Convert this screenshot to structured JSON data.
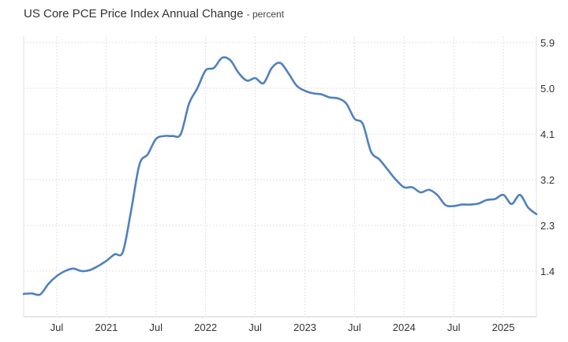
{
  "header": {
    "title": "US Core PCE Price Index Annual Change",
    "subtitle": "- percent"
  },
  "colors": {
    "line": "#4f81bd",
    "grid": "#e0e0e0",
    "text": "#333333"
  },
  "chart_data": {
    "type": "line",
    "title": "US Core PCE Price Index Annual Change",
    "subtitle": "- percent",
    "xlabel": "",
    "ylabel": "",
    "grid": true,
    "yaxis_position": "right",
    "ylim": [
      0.5,
      5.9
    ],
    "y_ticks": [
      1.4,
      2.3,
      3.2,
      4.1,
      5.0,
      5.9
    ],
    "y_tick_labels": [
      "1.4",
      "2.3",
      "3.2",
      "4.1",
      "5.0",
      "5.9"
    ],
    "xlim": [
      "2020-03",
      "2025-05"
    ],
    "x_ticks": [
      "2020-07",
      "2021-01",
      "2021-07",
      "2022-01",
      "2022-07",
      "2023-01",
      "2023-07",
      "2024-01",
      "2024-07",
      "2025-01"
    ],
    "x_tick_labels": [
      "Jul",
      "2021",
      "Jul",
      "2022",
      "Jul",
      "2023",
      "Jul",
      "2024",
      "Jul",
      "2025"
    ],
    "series": [
      {
        "name": "",
        "x": [
          "2020-03",
          "2020-04",
          "2020-05",
          "2020-06",
          "2020-07",
          "2020-08",
          "2020-09",
          "2020-10",
          "2020-11",
          "2020-12",
          "2021-01",
          "2021-02",
          "2021-03",
          "2021-04",
          "2021-05",
          "2021-06",
          "2021-07",
          "2021-08",
          "2021-09",
          "2021-10",
          "2021-11",
          "2021-12",
          "2022-01",
          "2022-02",
          "2022-03",
          "2022-04",
          "2022-05",
          "2022-06",
          "2022-07",
          "2022-08",
          "2022-09",
          "2022-10",
          "2022-11",
          "2022-12",
          "2023-01",
          "2023-02",
          "2023-03",
          "2023-04",
          "2023-05",
          "2023-06",
          "2023-07",
          "2023-08",
          "2023-09",
          "2023-10",
          "2023-11",
          "2023-12",
          "2024-01",
          "2024-02",
          "2024-03",
          "2024-04",
          "2024-05",
          "2024-06",
          "2024-07",
          "2024-08",
          "2024-09",
          "2024-10",
          "2024-11",
          "2024-12",
          "2025-01",
          "2025-02",
          "2025-03",
          "2025-04",
          "2025-05"
        ],
        "values": [
          0.95,
          0.96,
          0.94,
          1.15,
          1.3,
          1.4,
          1.45,
          1.4,
          1.42,
          1.5,
          1.6,
          1.73,
          1.78,
          2.6,
          3.5,
          3.7,
          4.0,
          4.06,
          4.06,
          4.1,
          4.7,
          5.0,
          5.35,
          5.4,
          5.6,
          5.55,
          5.3,
          5.15,
          5.2,
          5.1,
          5.4,
          5.5,
          5.3,
          5.05,
          4.95,
          4.9,
          4.88,
          4.82,
          4.8,
          4.7,
          4.4,
          4.3,
          3.75,
          3.6,
          3.4,
          3.2,
          3.05,
          3.05,
          2.95,
          3.0,
          2.9,
          2.7,
          2.68,
          2.71,
          2.71,
          2.73,
          2.8,
          2.82,
          2.9,
          2.72,
          2.9,
          2.65,
          2.52
        ]
      }
    ]
  }
}
